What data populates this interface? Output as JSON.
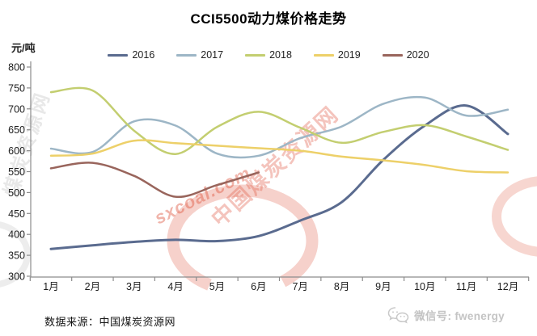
{
  "title": "CCI5500动力煤价格走势",
  "footer": {
    "source": "数据来源：中国煤炭资源网",
    "wechat": "微信号: fwenergy"
  },
  "watermarks": {
    "diagonal_red_text": "中国煤炭资源网",
    "brand_text": "sxcoal.com",
    "left_gray_text": "煤炭资源网",
    "red": "#e05a44",
    "gray": "#9a9a9a"
  },
  "axis_color": "#8c8c8c",
  "chart_data": {
    "type": "line",
    "title": "CCI5500动力煤价格走势",
    "xlabel": "",
    "ylabel": "元/吨",
    "ylim": [
      300,
      800
    ],
    "y_ticks": [
      800,
      750,
      700,
      650,
      600,
      550,
      500,
      450,
      400,
      350,
      300
    ],
    "grid": false,
    "legend_position": "top",
    "categories": [
      "1月",
      "2月",
      "3月",
      "4月",
      "5月",
      "6月",
      "7月",
      "8月",
      "9月",
      "10月",
      "11月",
      "12月"
    ],
    "series": [
      {
        "name": "2016",
        "color": "#5a6b8f",
        "values": [
          365,
          374,
          382,
          387,
          384,
          396,
          433,
          477,
          578,
          660,
          708,
          640
        ]
      },
      {
        "name": "2017",
        "color": "#9db6c6",
        "values": [
          605,
          597,
          670,
          660,
          593,
          588,
          630,
          658,
          712,
          727,
          684,
          698
        ]
      },
      {
        "name": "2018",
        "color": "#c3ce70",
        "values": [
          740,
          744,
          648,
          592,
          657,
          693,
          655,
          619,
          645,
          661,
          634,
          602
        ]
      },
      {
        "name": "2019",
        "color": "#edd069",
        "values": [
          588,
          593,
          624,
          618,
          612,
          606,
          600,
          586,
          577,
          566,
          551,
          548
        ]
      },
      {
        "name": "2020",
        "color": "#99655c",
        "values": [
          558,
          571,
          540,
          490,
          518,
          548,
          null,
          null,
          null,
          null,
          null,
          null
        ]
      }
    ]
  }
}
